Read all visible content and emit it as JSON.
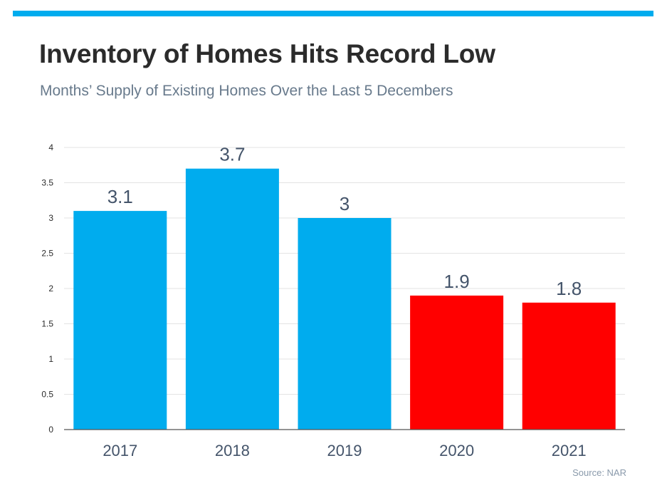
{
  "header": {
    "title": "Inventory of Homes Hits Record Low",
    "subtitle": "Months’ Supply of Existing Homes Over the Last 5 Decembers"
  },
  "footer": {
    "source": "Source: NAR"
  },
  "colors": {
    "accent_bar": "#00acee",
    "bar_blue": "#00acee",
    "bar_red": "#ff0000",
    "text_dark": "#2b2b2b",
    "text_muted": "#687a8c",
    "gridline": "#e3e3e3",
    "axis": "#555555"
  },
  "chart_data": {
    "type": "bar",
    "title": "Inventory of Homes Hits Record Low",
    "subtitle": "Months’ Supply of Existing Homes Over the Last 5 Decembers",
    "xlabel": "",
    "ylabel": "",
    "categories": [
      "2017",
      "2018",
      "2019",
      "2020",
      "2021"
    ],
    "values": [
      3.1,
      3.7,
      3,
      1.9,
      1.8
    ],
    "data_labels": [
      "3.1",
      "3.7",
      "3",
      "1.9",
      "1.8"
    ],
    "bar_colors": [
      "#00acee",
      "#00acee",
      "#00acee",
      "#ff0000",
      "#ff0000"
    ],
    "ylim": [
      0,
      4
    ],
    "yticks": [
      0,
      0.5,
      1,
      1.5,
      2,
      2.5,
      3,
      3.5,
      4
    ],
    "ytick_labels": [
      "0",
      "0.5",
      "1",
      "1.5",
      "2",
      "2.5",
      "3",
      "3.5",
      "4"
    ],
    "grid": true,
    "legend": "none"
  }
}
